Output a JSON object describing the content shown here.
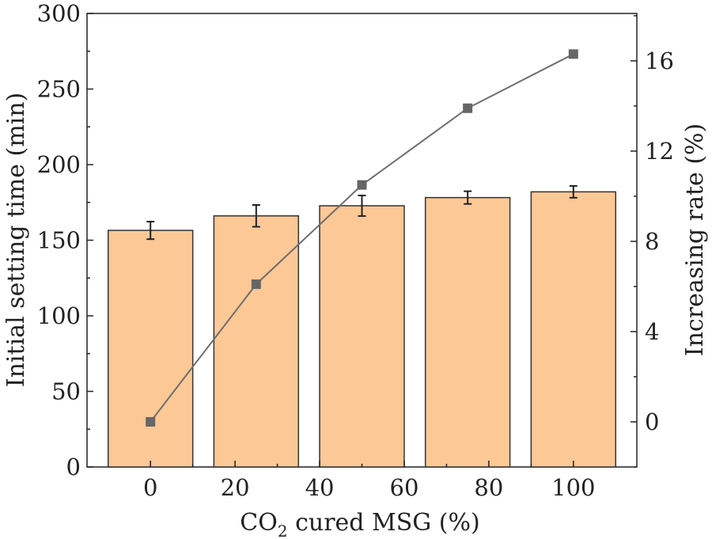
{
  "chart_data": {
    "type": "bar",
    "x": [
      0,
      25,
      50,
      75,
      100
    ],
    "xlim": [
      -15,
      115
    ],
    "xticks": [
      0,
      20,
      40,
      60,
      80,
      100
    ],
    "xlabel_parts": [
      "CO",
      "2",
      " cured MSG (%)"
    ],
    "xlabel": "CO2 cured MSG (%)",
    "ylabel": "Initial setting time (min)",
    "ylim": [
      0,
      300
    ],
    "yticks": [
      0,
      50,
      100,
      150,
      200,
      250,
      300
    ],
    "y2label": "Increasing rate (%)",
    "y2lim": [
      -2,
      18.1
    ],
    "y2ticks": [
      0,
      4,
      8,
      12,
      16
    ],
    "bar_width": 20,
    "series": [
      {
        "name": "Initial setting time",
        "type": "bar",
        "axis": "left",
        "values": [
          156.5,
          166.1,
          172.8,
          178.2,
          182.0
        ],
        "errors": [
          5.8,
          7.2,
          6.8,
          4.2,
          3.9
        ]
      },
      {
        "name": "Increasing rate",
        "type": "line",
        "axis": "right",
        "values": [
          0,
          6.1,
          10.5,
          13.9,
          16.3
        ]
      }
    ],
    "colors": {
      "bar": "#FCC896",
      "edge": "#333333",
      "line": "#6e6e6e",
      "marker": "#666666"
    }
  }
}
